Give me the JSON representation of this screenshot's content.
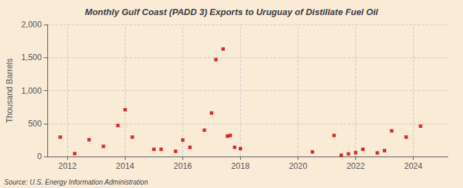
{
  "chart_data": {
    "type": "scatter",
    "title": "Monthly Gulf Coast (PADD 3) Exports to Uruguay of Distillate Fuel Oil",
    "ylabel": "Thousand Barrels",
    "annotations": [
      "Source: U.S. Energy Information Administration"
    ],
    "color": "#cc0000",
    "marker": "square",
    "grid": true,
    "xlim": [
      2011.3,
      2025.2
    ],
    "xticks": [
      2012,
      2014,
      2016,
      2018,
      2020,
      2022,
      2024
    ],
    "ylim": [
      0,
      2000
    ],
    "yticks": [
      0,
      500,
      {
        "value": 1000,
        "label": "1,000"
      },
      {
        "value": 1500,
        "label": "1,500"
      },
      {
        "value": 2000,
        "label": "2,000"
      }
    ],
    "x": [
      2011.75,
      2012.25,
      2012.75,
      2013.25,
      2013.75,
      2014.0,
      2014.25,
      2015.0,
      2015.25,
      2015.75,
      2016.0,
      2016.25,
      2016.75,
      2017.0,
      2017.15,
      2017.4,
      2017.55,
      2017.65,
      2017.8,
      2018.0,
      2020.5,
      2021.25,
      2021.5,
      2021.75,
      2022.0,
      2022.25,
      2022.75,
      2023.0,
      2023.25,
      2023.75,
      2024.25
    ],
    "values": [
      295,
      45,
      255,
      155,
      470,
      710,
      295,
      110,
      110,
      80,
      250,
      140,
      400,
      660,
      1470,
      1630,
      310,
      320,
      140,
      120,
      70,
      320,
      20,
      40,
      60,
      110,
      55,
      90,
      390,
      295,
      460
    ]
  }
}
